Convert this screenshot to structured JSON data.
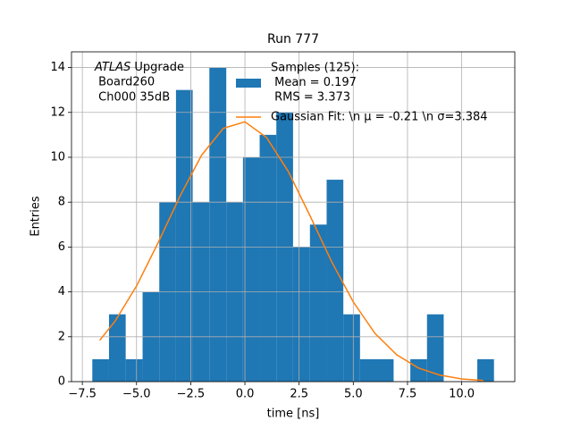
{
  "chart_data": {
    "type": "histogram",
    "title": "Run 777",
    "xlabel": "time [ns]",
    "ylabel": "Entries",
    "annotation": {
      "italic": "ATLAS",
      "text": " Upgrade",
      "lines": [
        " Board260",
        " Ch000 35dB"
      ]
    },
    "bins": [
      -7.04,
      -6.27,
      -5.5,
      -4.72,
      -3.95,
      -3.18,
      -2.41,
      -1.64,
      -0.86,
      -0.09,
      0.68,
      1.45,
      2.22,
      3.0,
      3.77,
      4.54,
      5.31,
      6.08,
      6.86,
      7.63,
      8.4,
      9.17,
      9.94,
      10.72,
      11.49
    ],
    "series": [
      {
        "name": [
          "Samples (125):",
          " Mean = 0.197",
          " RMS = 3.373"
        ],
        "color": "#1f77b4",
        "values": [
          1,
          3,
          1,
          4,
          8,
          13,
          8,
          14,
          8,
          10,
          11,
          12,
          6,
          7,
          9,
          3,
          1,
          1,
          0,
          1,
          3,
          0,
          0,
          1
        ]
      }
    ],
    "fit": {
      "name": "Gaussian Fit: \\n μ = -0.21 \\n σ=3.384",
      "color": "#ff7f0e",
      "x": [
        -6.7,
        -6,
        -5,
        -4,
        -3,
        -2,
        -1,
        0,
        1,
        2,
        3,
        4,
        5,
        6,
        7,
        8,
        9,
        10,
        11
      ],
      "values": [
        1.84,
        2.68,
        4.26,
        6.2,
        8.26,
        10.09,
        11.29,
        11.58,
        10.88,
        9.37,
        7.4,
        5.35,
        3.55,
        2.15,
        1.2,
        0.61,
        0.29,
        0.12,
        0.05
      ]
    },
    "xlim": [
      -8.0,
      12.45
    ],
    "ylim": [
      0,
      14.7
    ],
    "xticks": [
      {
        "value": -7.5,
        "label": "−7.5"
      },
      {
        "value": -5,
        "label": "−5.0"
      },
      {
        "value": -2.5,
        "label": "−2.5"
      },
      {
        "value": 0,
        "label": "0.0"
      },
      2.5,
      {
        "value": 5,
        "label": "5.0"
      },
      7.5,
      {
        "value": 10,
        "label": "10.0"
      }
    ],
    "yticks": [
      0,
      2,
      4,
      6,
      8,
      10,
      12,
      14
    ],
    "grid": true
  }
}
